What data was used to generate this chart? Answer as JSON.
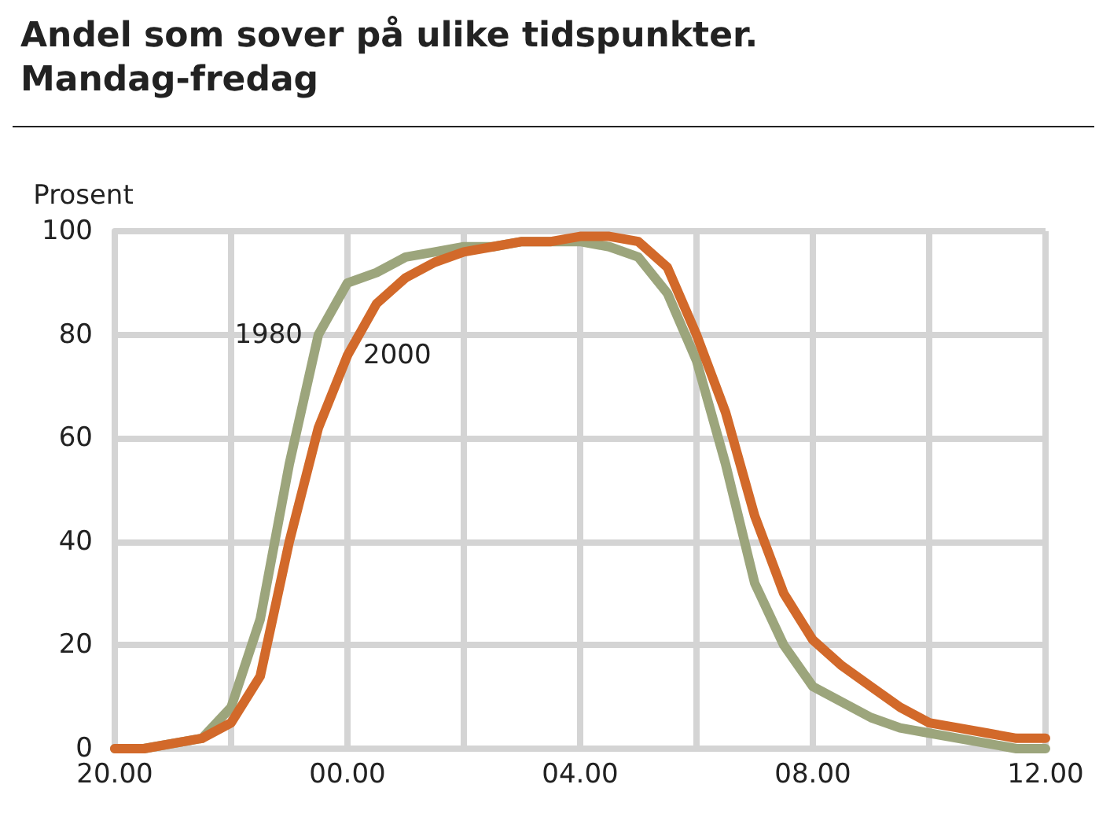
{
  "chart_data": {
    "type": "line",
    "title": "Andel som sover på ulike tidspunkter.\nMandag-fredag",
    "ylabel": "Prosent",
    "categories": [
      "20.00",
      null,
      null,
      null,
      null,
      null,
      null,
      null,
      "00.00",
      null,
      null,
      null,
      null,
      null,
      null,
      null,
      "04.00",
      null,
      null,
      null,
      null,
      null,
      null,
      null,
      "08.00",
      null,
      null,
      null,
      null,
      null,
      null,
      null,
      "12.00"
    ],
    "series": [
      {
        "name": "1980",
        "color": "#9ca57c",
        "values": [
          0,
          0,
          1,
          2,
          8,
          25,
          55,
          80,
          90,
          92,
          95,
          96,
          97,
          97,
          98,
          98,
          98,
          97,
          95,
          88,
          75,
          55,
          32,
          20,
          12,
          9,
          6,
          4,
          3,
          2,
          1,
          0,
          0
        ]
      },
      {
        "name": "2000",
        "color": "#d2692a",
        "values": [
          0,
          0,
          1,
          2,
          5,
          14,
          40,
          62,
          76,
          86,
          91,
          94,
          96,
          97,
          98,
          98,
          99,
          99,
          98,
          93,
          80,
          65,
          45,
          30,
          21,
          16,
          12,
          8,
          5,
          4,
          3,
          2,
          2
        ]
      }
    ],
    "ylim": [
      0,
      100
    ],
    "yticks": [
      0,
      20,
      40,
      60,
      80,
      100
    ],
    "grid": true,
    "legend": false,
    "marker": "none",
    "line_style": "solid"
  }
}
